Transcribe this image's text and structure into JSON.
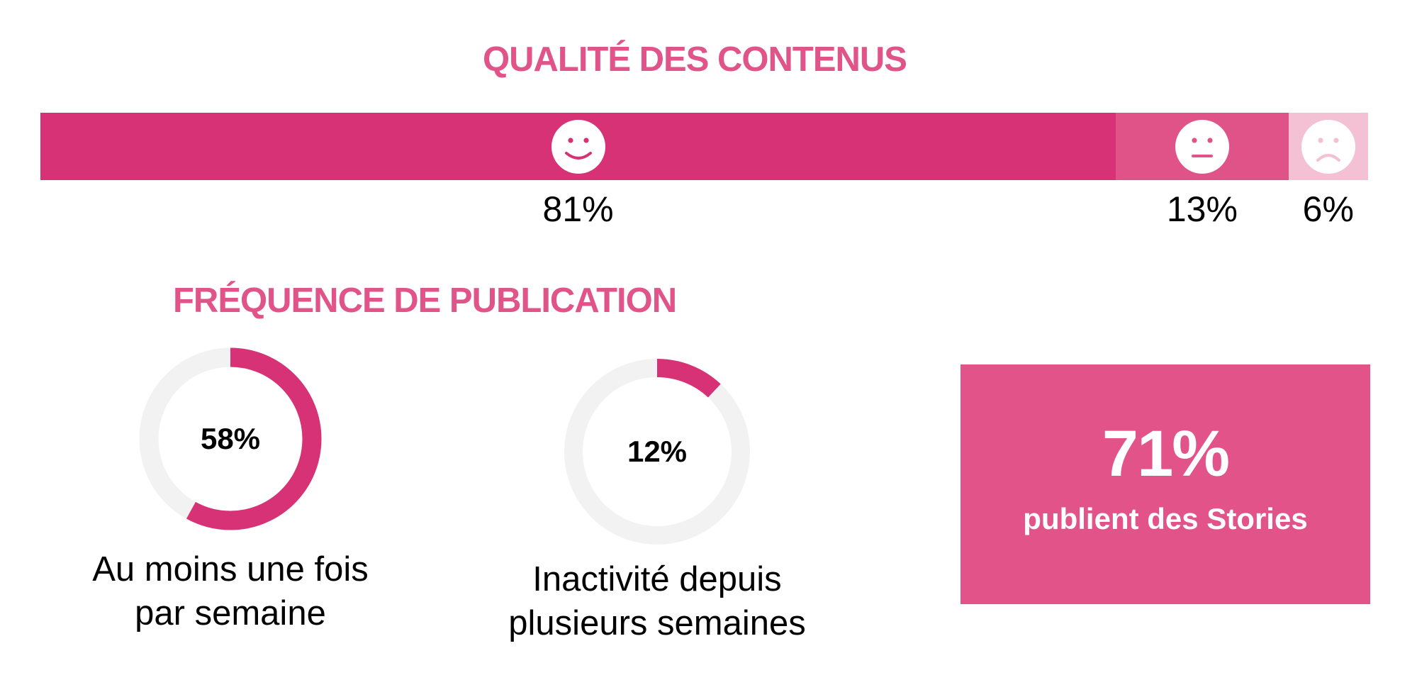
{
  "chart_data": [
    {
      "type": "bar",
      "title": "QUALITÉ DES CONTENUS",
      "categories": [
        "positive",
        "neutral",
        "negative"
      ],
      "values": [
        81,
        13,
        6
      ],
      "labels": [
        "81%",
        "13%",
        "6%"
      ],
      "icons": [
        "smiley-face-icon",
        "neutral-face-icon",
        "sad-face-icon"
      ],
      "colors": [
        "#d63275",
        "#df5389",
        "#f3c0d4"
      ],
      "orientation": "stacked-horizontal"
    },
    {
      "type": "pie",
      "title": "FRÉQUENCE DE PUBLICATION",
      "donuts": [
        {
          "value": 58,
          "label": "58%",
          "caption": [
            "Au moins une fois",
            "par semaine"
          ]
        },
        {
          "value": 12,
          "label": "12%",
          "caption": [
            "Inactivité depuis",
            "plusieurs semaines"
          ]
        }
      ],
      "colors": {
        "fill": "#d63275",
        "track": "#f2f2f2"
      }
    }
  ],
  "stories": {
    "value": "71%",
    "text": "publient des Stories",
    "color": "#e2538a"
  }
}
